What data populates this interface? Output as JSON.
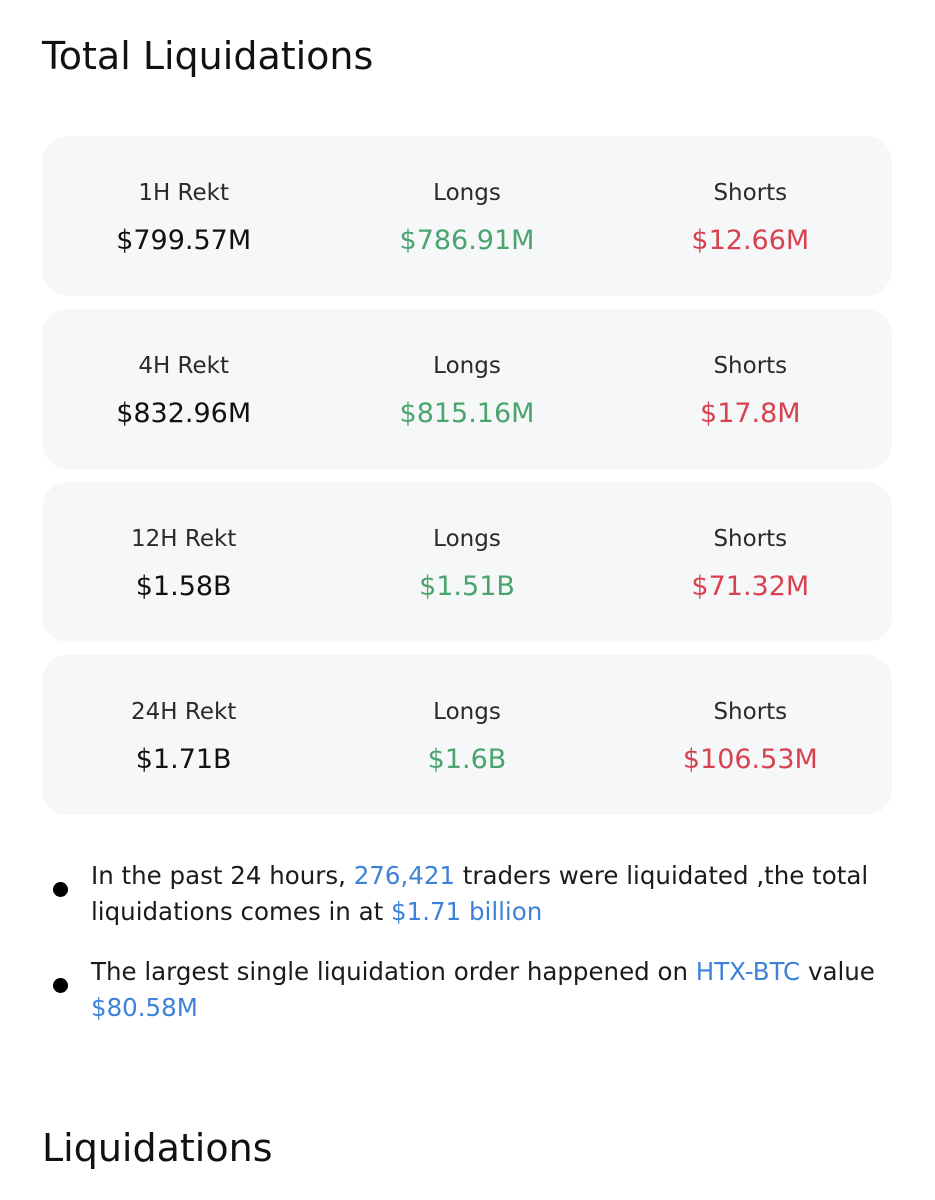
{
  "page": {
    "title_total": "Total Liquidations",
    "title_liquidations": "Liquidations"
  },
  "colors": {
    "long": "#4aa46e",
    "short": "#d8424f",
    "link": "#3d82d8",
    "card_bg": "#f6f7f9"
  },
  "cards": [
    {
      "period_label": "1H Rekt",
      "total": "$799.57M",
      "longs_label": "Longs",
      "longs": "$786.91M",
      "shorts_label": "Shorts",
      "shorts": "$12.66M"
    },
    {
      "period_label": "4H Rekt",
      "total": "$832.96M",
      "longs_label": "Longs",
      "longs": "$815.16M",
      "shorts_label": "Shorts",
      "shorts": "$17.8M"
    },
    {
      "period_label": "12H Rekt",
      "total": "$1.58B",
      "longs_label": "Longs",
      "longs": "$1.51B",
      "shorts_label": "Shorts",
      "shorts": "$71.32M"
    },
    {
      "period_label": "24H Rekt",
      "total": "$1.71B",
      "longs_label": "Longs",
      "longs": "$1.6B",
      "shorts_label": "Shorts",
      "shorts": "$106.53M"
    }
  ],
  "summary": {
    "b1_prefix": "In the past 24 hours, ",
    "b1_traders": "276,421",
    "b1_middle": " traders were liquidated ,the total liquidations comes in at ",
    "b1_total": "$1.71 billion",
    "b2_prefix": "The largest single liquidation order happened on ",
    "b2_pair": "HTX-BTC",
    "b2_middle": " value ",
    "b2_value": "$80.58M"
  }
}
